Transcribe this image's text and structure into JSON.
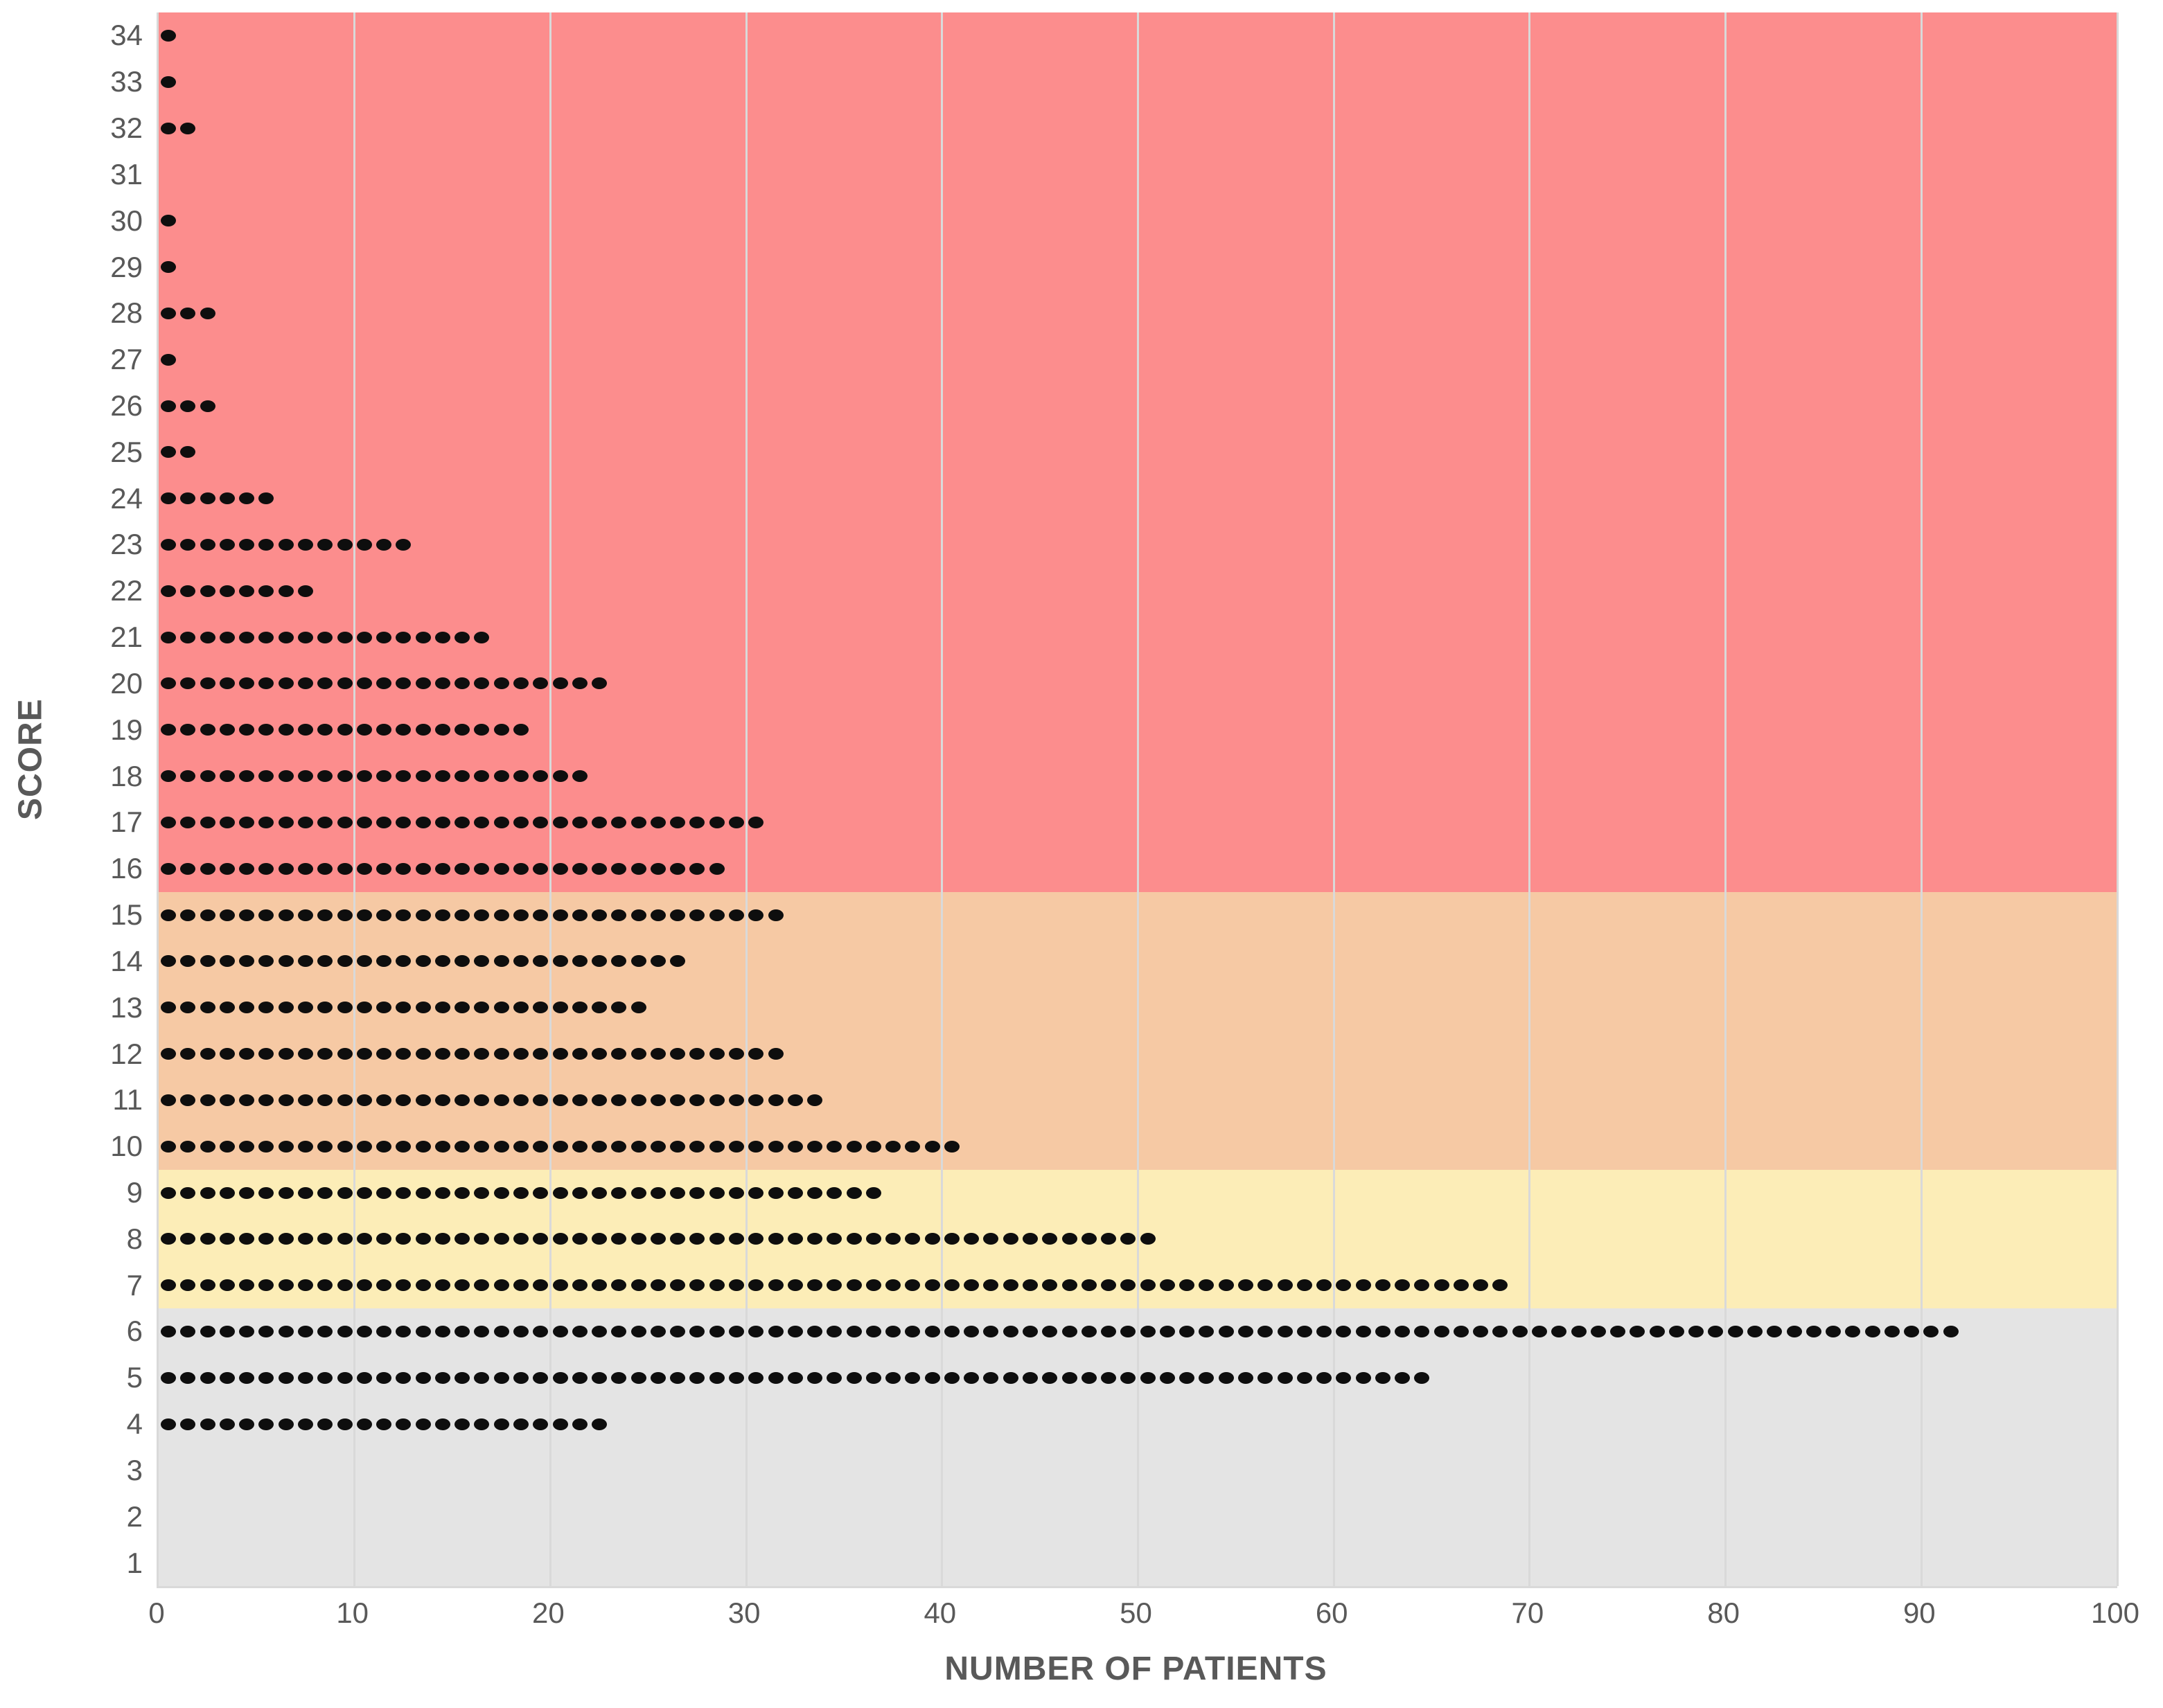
{
  "chart_data": {
    "type": "scatter",
    "subtype": "dot-plot",
    "xlabel": "NUMBER OF PATIENTS",
    "ylabel": "SCORE",
    "xlim": [
      0,
      100
    ],
    "x_ticks": [
      0,
      10,
      20,
      30,
      40,
      50,
      60,
      70,
      80,
      90,
      100
    ],
    "grid": true,
    "legend_position": "none",
    "dots_per_unit": 1,
    "rows": [
      {
        "score": 34,
        "count": 1
      },
      {
        "score": 33,
        "count": 1
      },
      {
        "score": 32,
        "count": 2
      },
      {
        "score": 31,
        "count": 0
      },
      {
        "score": 30,
        "count": 1
      },
      {
        "score": 29,
        "count": 1
      },
      {
        "score": 28,
        "count": 3
      },
      {
        "score": 27,
        "count": 1
      },
      {
        "score": 26,
        "count": 3
      },
      {
        "score": 25,
        "count": 2
      },
      {
        "score": 24,
        "count": 6
      },
      {
        "score": 23,
        "count": 13
      },
      {
        "score": 22,
        "count": 8
      },
      {
        "score": 21,
        "count": 17
      },
      {
        "score": 20,
        "count": 23
      },
      {
        "score": 19,
        "count": 19
      },
      {
        "score": 18,
        "count": 22
      },
      {
        "score": 17,
        "count": 31
      },
      {
        "score": 16,
        "count": 29
      },
      {
        "score": 15,
        "count": 32
      },
      {
        "score": 14,
        "count": 27
      },
      {
        "score": 13,
        "count": 25
      },
      {
        "score": 12,
        "count": 32
      },
      {
        "score": 11,
        "count": 34
      },
      {
        "score": 10,
        "count": 41
      },
      {
        "score": 9,
        "count": 37
      },
      {
        "score": 8,
        "count": 51
      },
      {
        "score": 7,
        "count": 69
      },
      {
        "score": 6,
        "count": 92
      },
      {
        "score": 5,
        "count": 65
      },
      {
        "score": 4,
        "count": 23
      },
      {
        "score": 3,
        "count": 0
      },
      {
        "score": 2,
        "count": 0
      },
      {
        "score": 1,
        "count": 0
      }
    ],
    "bands": [
      {
        "name": "high-risk-band",
        "score_from": 16,
        "score_to": 34,
        "color": "#FC8D8D"
      },
      {
        "name": "medium-high-band",
        "score_from": 10,
        "score_to": 15,
        "color": "#F6C9A4"
      },
      {
        "name": "medium-band",
        "score_from": 7,
        "score_to": 9,
        "color": "#FCEDB7"
      },
      {
        "name": "low-band",
        "score_from": 1,
        "score_to": 6,
        "color": "#E4E4E4"
      }
    ],
    "colors": {
      "dot": "#0E0E0E",
      "gridline": "#D9D9D9",
      "text": "#595959"
    }
  }
}
